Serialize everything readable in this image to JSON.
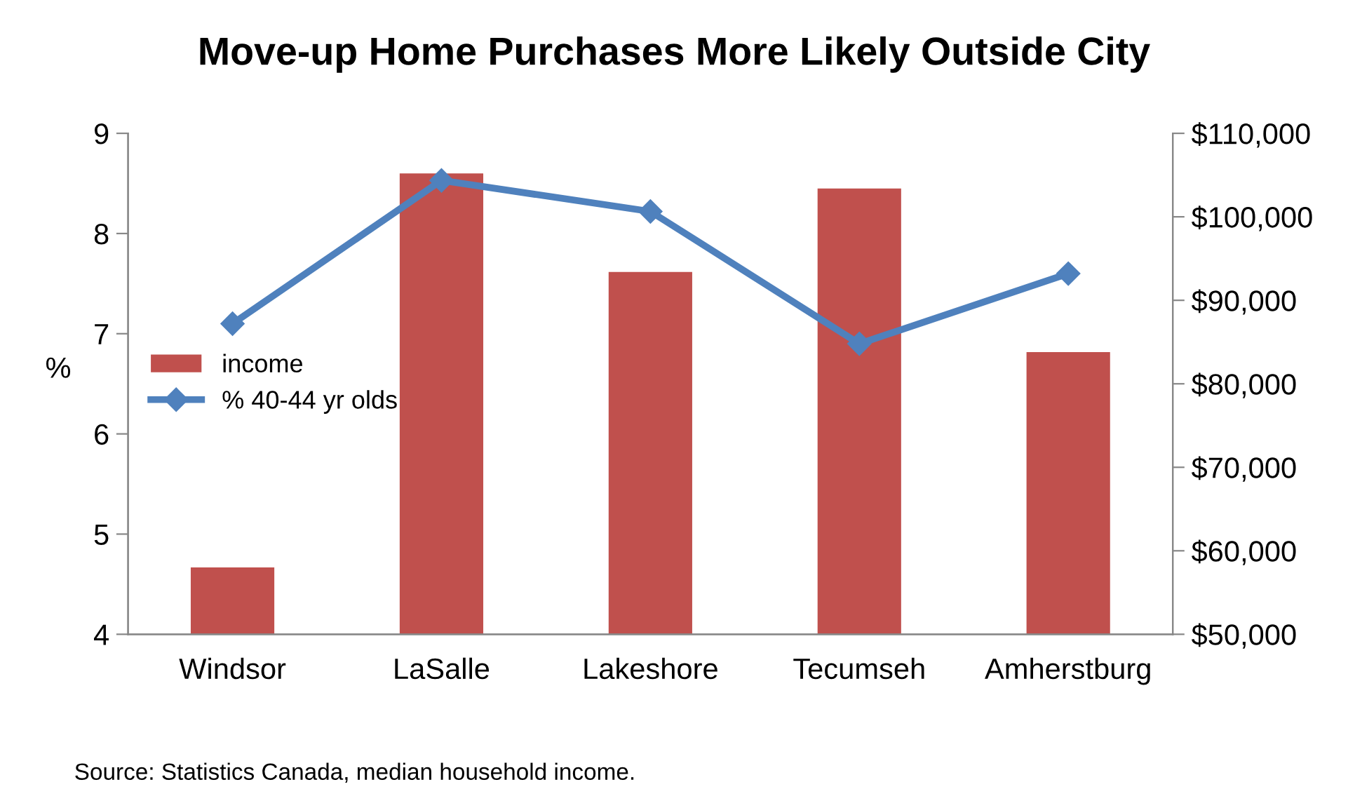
{
  "chart_data": {
    "type": "bar",
    "title": "Move-up Home Purchases More Likely Outside City",
    "ylabel": "%",
    "categories": [
      "Windsor",
      "LaSalle",
      "Lakeshore",
      "Tecumseh",
      "Amherstburg"
    ],
    "series": [
      {
        "name": "income",
        "axis": "y2",
        "color": "#c0504d",
        "values": [
          58000,
          105200,
          93400,
          103400,
          83800
        ]
      },
      {
        "name": "% 40-44 yr olds",
        "type": "line",
        "color": "#4f81bd",
        "marker": "diamond",
        "values": [
          7.1,
          8.53,
          8.22,
          6.9,
          7.6
        ]
      }
    ],
    "ylim": [
      4,
      9
    ],
    "yticks": [
      4,
      5,
      6,
      7,
      8,
      9
    ],
    "y2lim": [
      50000,
      110000
    ],
    "y2ticks": [
      {
        "value": 50000,
        "label": "$50,000"
      },
      {
        "value": 60000,
        "label": "$60,000"
      },
      {
        "value": 70000,
        "label": "$70,000"
      },
      {
        "value": 80000,
        "label": "$80,000"
      },
      {
        "value": 90000,
        "label": "$90,000"
      },
      {
        "value": 100000,
        "label": "$100,000"
      },
      {
        "value": 110000,
        "label": "$110,000"
      }
    ],
    "grid": false,
    "legend": "left",
    "annotations": [
      "Source: Statistics Canada, median household income."
    ]
  }
}
